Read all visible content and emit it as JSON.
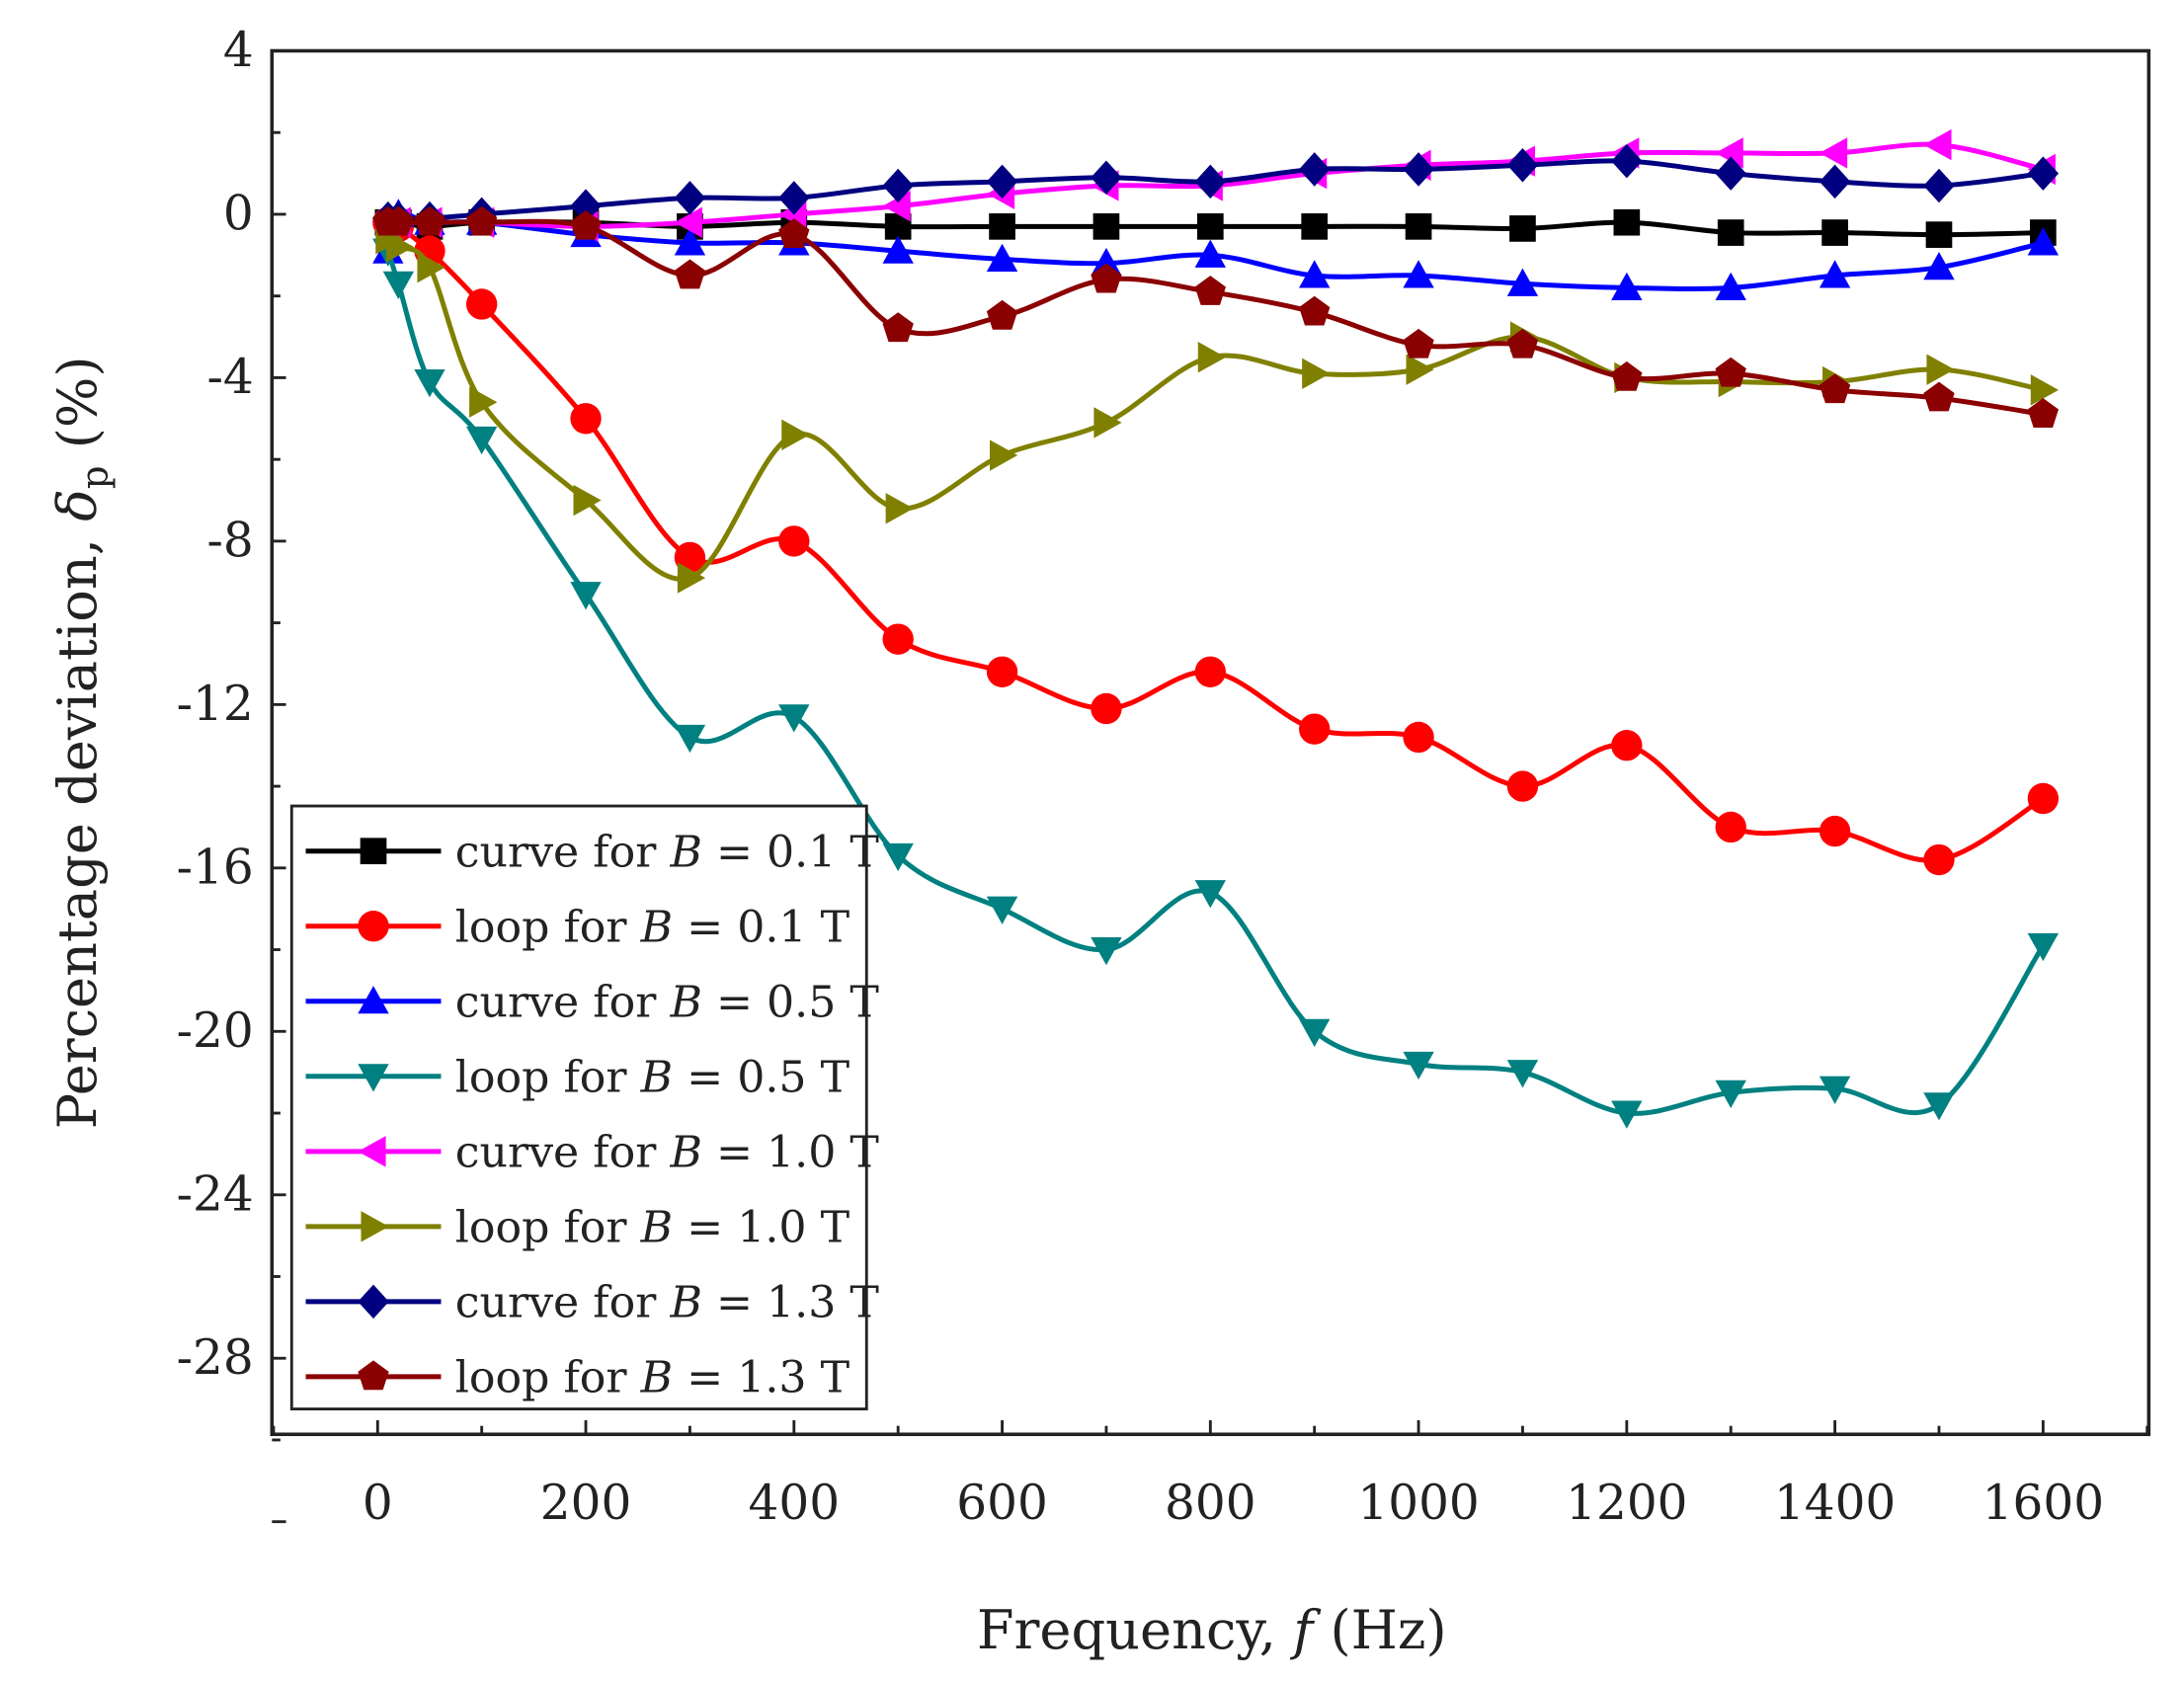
{
  "chart_data": {
    "type": "line",
    "title": "",
    "xlabel": "Frequency, f (Hz)",
    "xlabel_parts": {
      "pre": "Frequency, ",
      "var": "f",
      "post": " (Hz)"
    },
    "ylabel": "Percentage deviation, δp (%)",
    "ylabel_parts": {
      "pre": "Percentage deviation, ",
      "var": "δ",
      "sub": "p",
      "post": " (%)"
    },
    "xlim": [
      -100,
      1700
    ],
    "ylim": [
      -32,
      4
    ],
    "xticks": [
      0,
      200,
      400,
      600,
      800,
      1000,
      1200,
      1400,
      1600
    ],
    "yticks": [
      4,
      0,
      -4,
      -8,
      -12,
      -16,
      -20,
      -24,
      -28
    ],
    "legend_position": "bottom-left",
    "grid": false,
    "x": [
      10,
      20,
      50,
      100,
      200,
      300,
      400,
      500,
      600,
      700,
      800,
      900,
      1000,
      1100,
      1200,
      1300,
      1400,
      1500,
      1600
    ],
    "series": [
      {
        "name": "curve for B = 0.1 T",
        "color": "#000000",
        "marker": "square",
        "values": [
          -0.2,
          -0.2,
          -0.3,
          -0.2,
          -0.2,
          -0.3,
          -0.2,
          -0.3,
          -0.3,
          -0.3,
          -0.3,
          -0.3,
          -0.3,
          -0.35,
          -0.2,
          -0.45,
          -0.45,
          -0.5,
          -0.45
        ]
      },
      {
        "name": "loop for B = 0.1 T",
        "color": "#ff0000",
        "marker": "circle",
        "values": [
          -0.2,
          -0.3,
          -0.9,
          -2.2,
          -5.0,
          -8.4,
          -8.0,
          -10.4,
          -11.2,
          -12.1,
          -11.2,
          -12.6,
          -12.8,
          -14.0,
          -13.0,
          -15.0,
          -15.1,
          -15.8,
          -14.3
        ]
      },
      {
        "name": "curve for B = 0.5 T",
        "color": "#0000ff",
        "marker": "triangle-up",
        "values": [
          -0.9,
          0.0,
          -0.2,
          -0.2,
          -0.5,
          -0.7,
          -0.7,
          -0.9,
          -1.1,
          -1.2,
          -1.0,
          -1.5,
          -1.5,
          -1.7,
          -1.8,
          -1.8,
          -1.5,
          -1.3,
          -0.7
        ]
      },
      {
        "name": "loop for B = 0.5 T",
        "color": "#008080",
        "marker": "triangle-down",
        "values": [
          -0.9,
          -1.7,
          -4.1,
          -5.5,
          -9.3,
          -12.8,
          -12.3,
          -15.7,
          -17.0,
          -18.0,
          -16.6,
          -20.0,
          -20.8,
          -21.0,
          -22.0,
          -21.5,
          -21.4,
          -21.8,
          -17.9
        ]
      },
      {
        "name": "curve for B = 1.0 T",
        "color": "#ff00ff",
        "marker": "triangle-left",
        "values": [
          -0.2,
          -0.2,
          -0.2,
          -0.2,
          -0.3,
          -0.2,
          0.0,
          0.2,
          0.5,
          0.7,
          0.7,
          1.0,
          1.2,
          1.3,
          1.5,
          1.5,
          1.5,
          1.7,
          1.1
        ]
      },
      {
        "name": "loop for B = 1.0 T",
        "color": "#808000",
        "marker": "triangle-right",
        "values": [
          -0.6,
          -0.8,
          -1.3,
          -4.6,
          -7.0,
          -8.9,
          -5.4,
          -7.2,
          -5.9,
          -5.1,
          -3.5,
          -3.9,
          -3.8,
          -3.0,
          -4.0,
          -4.1,
          -4.1,
          -3.8,
          -4.3
        ]
      },
      {
        "name": "curve for B = 1.3 T",
        "color": "#000080",
        "marker": "diamond",
        "values": [
          -0.1,
          -0.1,
          -0.1,
          0.0,
          0.2,
          0.4,
          0.4,
          0.7,
          0.8,
          0.9,
          0.8,
          1.1,
          1.1,
          1.2,
          1.3,
          1.0,
          0.8,
          0.7,
          1.0
        ]
      },
      {
        "name": "loop for B = 1.3 T",
        "color": "#8b0000",
        "marker": "pentagon",
        "values": [
          -0.2,
          -0.2,
          -0.2,
          -0.2,
          -0.3,
          -1.5,
          -0.5,
          -2.8,
          -2.5,
          -1.6,
          -1.9,
          -2.4,
          -3.2,
          -3.2,
          -4.0,
          -3.9,
          -4.3,
          -4.5,
          -4.9
        ]
      }
    ]
  }
}
